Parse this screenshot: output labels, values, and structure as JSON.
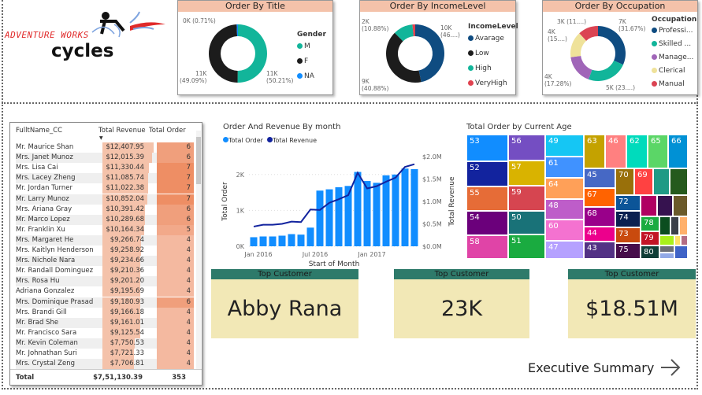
{
  "logo": {
    "line1": "ADVENTURE WORKS",
    "line2": "cycles"
  },
  "title_chart": {
    "title": "Order By Title",
    "legend_title": "Gender",
    "items": [
      {
        "label": "M",
        "value": 50.21,
        "color": "#12b59a",
        "data_label": "11K\n(50.21%)"
      },
      {
        "label": "F",
        "value": 49.09,
        "color": "#1c1c1c",
        "data_label": "11K\n(49.09%)"
      },
      {
        "label": "NA",
        "value": 0.71,
        "color": "#118dff",
        "data_label": "0K (0.71%)"
      }
    ]
  },
  "income_chart": {
    "title": "Order By IncomeLevel",
    "legend_title": "IncomeLevel",
    "items": [
      {
        "label": "Avarage",
        "value": 46.7,
        "color": "#0f4c81",
        "data_label": "10K\n(46....)"
      },
      {
        "label": "Low",
        "value": 40.88,
        "color": "#1c1c1c",
        "data_label": "9K\n(40.88%)"
      },
      {
        "label": "High",
        "value": 10.88,
        "color": "#12b59a",
        "data_label": "2K\n(10.88%)"
      },
      {
        "label": "VeryHigh",
        "value": 1.54,
        "color": "#e0424f",
        "data_label": ""
      }
    ]
  },
  "occupation_chart": {
    "title": "Order By Occupation",
    "legend_title": "Occupation",
    "items": [
      {
        "label": "Professi...",
        "value": 31.67,
        "color": "#0f4c81",
        "data_label": "7K\n(31.67%)"
      },
      {
        "label": "Skilled ...",
        "value": 23.9,
        "color": "#12b59a",
        "data_label": "5K (23....)"
      },
      {
        "label": "Manage...",
        "value": 17.28,
        "color": "#a066b8",
        "data_label": "4K\n(17.28%)"
      },
      {
        "label": "Clerical",
        "value": 15.3,
        "color": "#efe29a",
        "data_label": "4K\n(15....)"
      },
      {
        "label": "Manual",
        "value": 11.85,
        "color": "#db4453",
        "data_label": "3K (11....)"
      }
    ]
  },
  "table": {
    "headers": [
      "FulltName_CC",
      "Total Revenue",
      "Total Order"
    ],
    "rows": [
      [
        "Mr. Maurice Shan",
        "$12,407.95",
        6
      ],
      [
        "Mrs. Janet Munoz",
        "$12,015.39",
        6
      ],
      [
        "Mrs. Lisa Cai",
        "$11,330.44",
        7
      ],
      [
        "Mrs. Lacey Zheng",
        "$11,085.74",
        7
      ],
      [
        "Mr. Jordan Turner",
        "$11,022.38",
        7
      ],
      [
        "Mr. Larry Munoz",
        "$10,852.04",
        7
      ],
      [
        "Mrs. Ariana Gray",
        "$10,391.42",
        6
      ],
      [
        "Mr. Marco Lopez",
        "$10,289.68",
        6
      ],
      [
        "Mr. Franklin Xu",
        "$10,164.34",
        5
      ],
      [
        "Mrs. Margaret He",
        "$9,266.74",
        4
      ],
      [
        "Mrs. Kaitlyn Henderson",
        "$9,258.92",
        4
      ],
      [
        "Mrs. Nichole Nara",
        "$9,234.66",
        4
      ],
      [
        "Mr. Randall Dominguez",
        "$9,210.36",
        4
      ],
      [
        "Mrs. Rosa Hu",
        "$9,201.20",
        4
      ],
      [
        "Adriana Gonzalez",
        "$9,195.69",
        4
      ],
      [
        "Mrs. Dominique Prasad",
        "$9,180.93",
        6
      ],
      [
        "Mrs. Brandi Gill",
        "$9,166.18",
        4
      ],
      [
        "Mr. Brad She",
        "$9,161.01",
        4
      ],
      [
        "Mr. Francisco Sara",
        "$9,125.54",
        4
      ],
      [
        "Mr. Kevin Coleman",
        "$7,750.53",
        4
      ],
      [
        "Mr. Johnathan Suri",
        "$7,721.33",
        4
      ],
      [
        "Mrs. Crystal Zeng",
        "$7,706.81",
        4
      ]
    ],
    "total_label": "Total",
    "total_revenue": "$7,51,130.39",
    "total_order": "353"
  },
  "chart_data": {
    "type": "bar+line",
    "title": "Order And Revenue By month",
    "xlabel": "Start of Month",
    "ylabel": "Total Order",
    "y2label": "Total Revenue",
    "x": [
      "2016-01",
      "2016-02",
      "2016-03",
      "2016-04",
      "2016-05",
      "2016-06",
      "2016-07",
      "2016-08",
      "2016-09",
      "2016-10",
      "2016-11",
      "2016-12",
      "2017-01",
      "2017-02",
      "2017-03",
      "2017-04",
      "2017-05",
      "2017-06"
    ],
    "x_ticks": [
      "Jan 2016",
      "Jul 2016",
      "Jan 2017"
    ],
    "y_ticks": [
      "0K",
      "1K",
      "2K"
    ],
    "y2_ticks": [
      "$0.0M",
      "$0.5M",
      "$1.0M",
      "$1.5M",
      "$2.0M"
    ],
    "ylim": [
      0,
      2500
    ],
    "y2lim": [
      0,
      2000000
    ],
    "series": [
      {
        "name": "Total Order",
        "type": "bar",
        "color": "#118dff",
        "values": [
          253,
          274,
          274,
          296,
          339,
          325,
          520,
          1552,
          1588,
          1646,
          1682,
          2072,
          1819,
          1769,
          1978,
          2000,
          2166,
          2151
        ]
      },
      {
        "name": "Total Revenue",
        "type": "line",
        "color": "#12239e",
        "values": [
          440000,
          480000,
          480000,
          500000,
          550000,
          540000,
          820000,
          810000,
          970000,
          1050000,
          1140000,
          1640000,
          1290000,
          1340000,
          1440000,
          1530000,
          1770000,
          1830000
        ]
      }
    ]
  },
  "treemap": {
    "title": "Total Order by Current Age",
    "cells": [
      {
        "label": "53",
        "color": "#118dff"
      },
      {
        "label": "52",
        "color": "#12239e"
      },
      {
        "label": "55",
        "color": "#e66c37"
      },
      {
        "label": "54",
        "color": "#6b007b"
      },
      {
        "label": "58",
        "color": "#e044a7"
      },
      {
        "label": "56",
        "color": "#744ec2"
      },
      {
        "label": "57",
        "color": "#d9b300"
      },
      {
        "label": "59",
        "color": "#d64550"
      },
      {
        "label": "50",
        "color": "#197278"
      },
      {
        "label": "51",
        "color": "#1aab40"
      },
      {
        "label": "49",
        "color": "#15c6f4"
      },
      {
        "label": "61",
        "color": "#4092ff"
      },
      {
        "label": "64",
        "color": "#ffa058"
      },
      {
        "label": "48",
        "color": "#be5dc9"
      },
      {
        "label": "60",
        "color": "#f472d0"
      },
      {
        "label": "47",
        "color": "#b5a1ff"
      },
      {
        "label": "63",
        "color": "#c4a200"
      },
      {
        "label": "46",
        "color": "#ff8080"
      },
      {
        "label": "62",
        "color": "#00dbbc"
      },
      {
        "label": "65",
        "color": "#5bd667"
      },
      {
        "label": "66",
        "color": "#0091d5"
      },
      {
        "label": "45",
        "color": "#4668c5"
      },
      {
        "label": "67",
        "color": "#ff6300"
      },
      {
        "label": "68",
        "color": "#99008a"
      },
      {
        "label": "44",
        "color": "#ec008c"
      },
      {
        "label": "43",
        "color": "#533285"
      },
      {
        "label": "70",
        "color": "#99700a"
      },
      {
        "label": "69",
        "color": "#ff4141"
      },
      {
        "label": "",
        "color": "#1f9a85"
      },
      {
        "label": "",
        "color": "#255a1d"
      },
      {
        "label": "72",
        "color": "#0c5598"
      },
      {
        "label": "74",
        "color": "#0b2050"
      },
      {
        "label": "73",
        "color": "#c94a0e"
      },
      {
        "label": "75",
        "color": "#470d4a"
      },
      {
        "label": "",
        "color": "#b00062"
      },
      {
        "label": "",
        "color": "#36124f"
      },
      {
        "label": "",
        "color": "#6b5a2a"
      },
      {
        "label": "78",
        "color": "#1aab40"
      },
      {
        "label": "79",
        "color": "#c21426"
      },
      {
        "label": "80",
        "color": "#0f3d36"
      },
      {
        "label": "",
        "color": "#0b4d1f"
      },
      {
        "label": "",
        "color": "#3b3f48"
      },
      {
        "label": "",
        "color": "#ffb06b"
      },
      {
        "label": "",
        "color": "#a9f01a"
      },
      {
        "label": "",
        "color": "#ffe066"
      },
      {
        "label": "",
        "color": "#b46c84"
      },
      {
        "label": "",
        "color": "#6b6e76"
      },
      {
        "label": "",
        "color": "#92a9e6"
      },
      {
        "label": "",
        "color": "#3f63c7"
      }
    ]
  },
  "kpis": [
    {
      "header": "Top Customer",
      "value": "Abby Rana"
    },
    {
      "header": "Top Customer",
      "value": "23K"
    },
    {
      "header": "Top Customer",
      "value": "$18.51M"
    }
  ],
  "nav": {
    "label": "Executive Summary"
  }
}
